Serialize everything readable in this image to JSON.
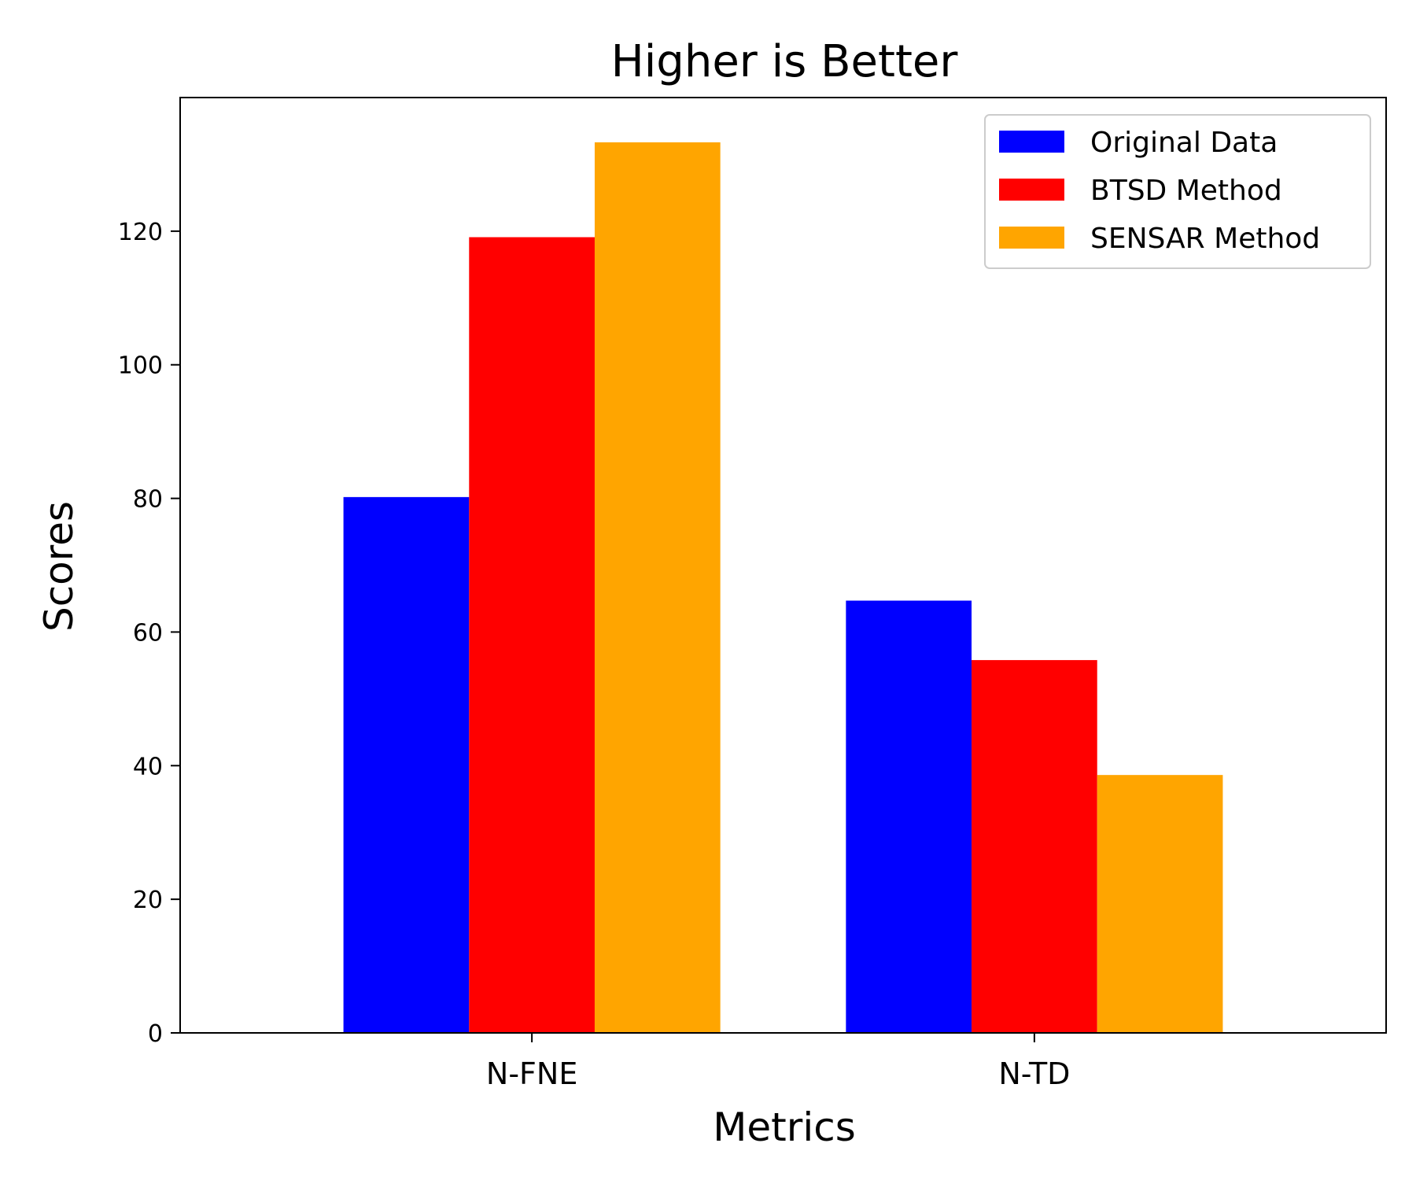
{
  "chart_data": {
    "type": "bar",
    "title": "Higher is Better",
    "xlabel": "Metrics",
    "ylabel": "Scores",
    "categories": [
      "N-FNE",
      "N-TD"
    ],
    "series": [
      {
        "name": "Original Data",
        "color": "#0000ff",
        "values": [
          80.2,
          64.7
        ]
      },
      {
        "name": "BTSD Method",
        "color": "#ff0000",
        "values": [
          119.1,
          55.8
        ]
      },
      {
        "name": "SENSAR Method",
        "color": "#ffa500",
        "values": [
          133.3,
          38.6
        ]
      }
    ],
    "ylim": [
      0,
      140
    ],
    "yticks": [
      0,
      20,
      40,
      60,
      80,
      100,
      120
    ],
    "grid": false,
    "legend_position": "top-right"
  }
}
